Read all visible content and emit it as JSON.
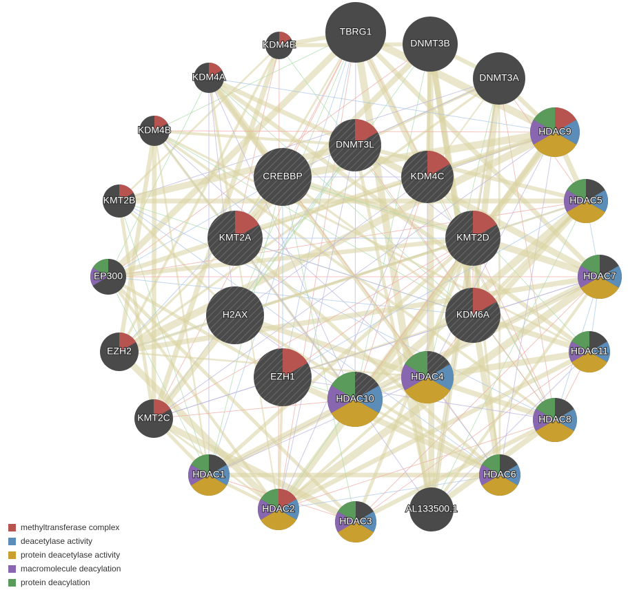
{
  "colors": {
    "node": "#4a4a4a",
    "edge_coexpression": "#d8d2a0",
    "edge_physical": "#f0a8a0",
    "edge_pathway": "#a8c4e8",
    "edge_colocalization": "#b8b0e0",
    "edge_genetic": "#a8dca8"
  },
  "legend": [
    {
      "key": "methyltransferase",
      "label": "methyltransferase complex",
      "color": "#b85450"
    },
    {
      "key": "deacetylase",
      "label": "deacetylase activity",
      "color": "#5b8db8"
    },
    {
      "key": "protein_deacetylase",
      "label": "protein deacetylase activity",
      "color": "#c9a030"
    },
    {
      "key": "macromolecule",
      "label": "macromolecule deacylation",
      "color": "#8866b0"
    },
    {
      "key": "protein_deacylation",
      "label": "protein deacylation",
      "color": "#5a9a5a"
    }
  ],
  "nodes": [
    {
      "id": "TBRG1",
      "label": "TBRG1",
      "functions": [],
      "query": false
    },
    {
      "id": "DNMT3B",
      "label": "DNMT3B",
      "functions": [],
      "query": false
    },
    {
      "id": "DNMT3A",
      "label": "DNMT3A",
      "functions": [],
      "query": false
    },
    {
      "id": "KDM4E",
      "label": "KDM4E",
      "functions": [
        "methyltransferase"
      ],
      "query": false
    },
    {
      "id": "KDM4A",
      "label": "KDM4A",
      "functions": [
        "methyltransferase"
      ],
      "query": false
    },
    {
      "id": "KDM4B",
      "label": "KDM4B",
      "functions": [
        "methyltransferase"
      ],
      "query": false
    },
    {
      "id": "KMT2B",
      "label": "KMT2B",
      "functions": [
        "methyltransferase"
      ],
      "query": false
    },
    {
      "id": "EP300",
      "label": "EP300",
      "functions": [
        "protein_deacylation",
        "macromolecule"
      ],
      "query": false
    },
    {
      "id": "EZH2",
      "label": "EZH2",
      "functions": [
        "methyltransferase"
      ],
      "query": false
    },
    {
      "id": "KMT2C",
      "label": "KMT2C",
      "functions": [
        "methyltransferase"
      ],
      "query": false
    },
    {
      "id": "HDAC1",
      "label": "HDAC1",
      "functions": [
        "protein_deacylation",
        "deacetylase",
        "protein_deacetylase",
        "macromolecule"
      ],
      "query": false
    },
    {
      "id": "HDAC2",
      "label": "HDAC2",
      "functions": [
        "protein_deacylation",
        "methyltransferase",
        "deacetylase",
        "protein_deacetylase",
        "macromolecule"
      ],
      "query": false
    },
    {
      "id": "HDAC3",
      "label": "HDAC3",
      "functions": [
        "protein_deacylation",
        "deacetylase",
        "protein_deacetylase",
        "macromolecule"
      ],
      "query": false
    },
    {
      "id": "AL133500.1",
      "label": "AL133500.1",
      "functions": [],
      "query": false
    },
    {
      "id": "HDAC6",
      "label": "HDAC6",
      "functions": [
        "protein_deacylation",
        "deacetylase",
        "protein_deacetylase",
        "macromolecule"
      ],
      "query": false
    },
    {
      "id": "HDAC8",
      "label": "HDAC8",
      "functions": [
        "protein_deacylation",
        "deacetylase",
        "protein_deacetylase",
        "macromolecule"
      ],
      "query": false
    },
    {
      "id": "HDAC11",
      "label": "HDAC11",
      "functions": [
        "protein_deacylation",
        "deacetylase",
        "protein_deacetylase",
        "macromolecule"
      ],
      "query": false
    },
    {
      "id": "HDAC7",
      "label": "HDAC7",
      "functions": [
        "protein_deacylation",
        "deacetylase",
        "protein_deacetylase",
        "macromolecule"
      ],
      "query": false
    },
    {
      "id": "HDAC5",
      "label": "HDAC5",
      "functions": [
        "protein_deacylation",
        "deacetylase",
        "protein_deacetylase",
        "macromolecule"
      ],
      "query": false
    },
    {
      "id": "HDAC9",
      "label": "HDAC9",
      "functions": [
        "protein_deacylation",
        "methyltransferase",
        "deacetylase",
        "protein_deacetylase",
        "macromolecule"
      ],
      "query": false
    },
    {
      "id": "DNMT3L",
      "label": "DNMT3L",
      "functions": [
        "methyltransferase"
      ],
      "query": true
    },
    {
      "id": "CREBBP",
      "label": "CREBBP",
      "functions": [],
      "query": true
    },
    {
      "id": "KDM4C",
      "label": "KDM4C",
      "functions": [
        "methyltransferase"
      ],
      "query": true
    },
    {
      "id": "KMT2A",
      "label": "KMT2A",
      "functions": [
        "methyltransferase"
      ],
      "query": true
    },
    {
      "id": "KMT2D",
      "label": "KMT2D",
      "functions": [
        "methyltransferase"
      ],
      "query": true
    },
    {
      "id": "H2AX",
      "label": "H2AX",
      "functions": [],
      "query": true
    },
    {
      "id": "KDM6A",
      "label": "KDM6A",
      "functions": [
        "methyltransferase"
      ],
      "query": true
    },
    {
      "id": "EZH1",
      "label": "EZH1",
      "functions": [
        "methyltransferase"
      ],
      "query": true
    },
    {
      "id": "HDAC10",
      "label": "HDAC10",
      "functions": [
        "protein_deacylation",
        "deacetylase",
        "protein_deacetylase",
        "macromolecule"
      ],
      "query": true
    },
    {
      "id": "HDAC4",
      "label": "HDAC4",
      "functions": [
        "protein_deacylation",
        "deacetylase",
        "protein_deacetylase",
        "macromolecule"
      ],
      "query": true
    }
  ]
}
